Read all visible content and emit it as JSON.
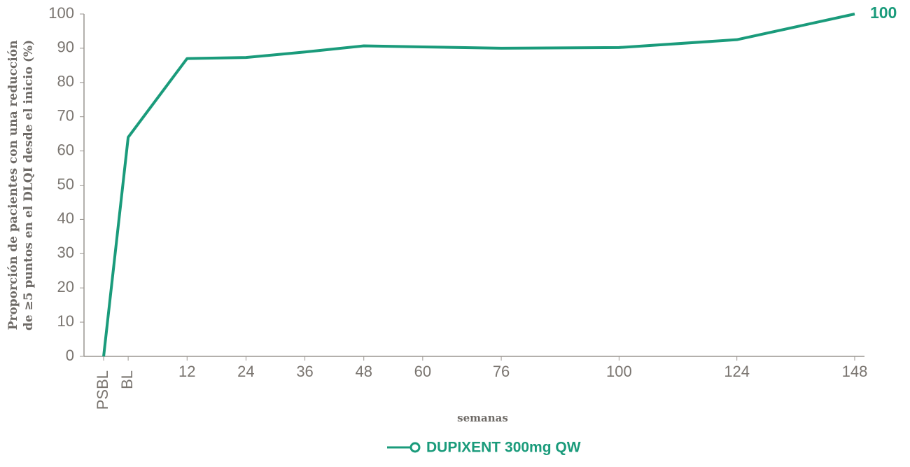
{
  "chart_data": {
    "type": "line",
    "y_label_lines": [
      "Proporción de pacientes con una reducción",
      "de ≥5 puntos en el DLQI desde el inicio (%)"
    ],
    "x_label": "semanas",
    "x": [
      -5,
      0,
      12,
      24,
      36,
      48,
      60,
      76,
      100,
      124,
      148
    ],
    "series": [
      {
        "name": "DUPIXENT 300mg QW",
        "color": "#1a9b7b",
        "values": [
          0,
          64,
          87,
          87.3,
          88.9,
          90.7,
          90.4,
          90,
          90.2,
          92.5,
          100
        ]
      }
    ],
    "xlim": [
      -9,
      150
    ],
    "xticks": [
      {
        "value": -5,
        "label": "PSBL"
      },
      {
        "value": 0,
        "label": "BL"
      },
      12,
      24,
      36,
      48,
      60,
      76,
      100,
      124,
      148
    ],
    "ylim": [
      0,
      100
    ],
    "yticks": [
      0,
      10,
      20,
      30,
      40,
      50,
      60,
      70,
      80,
      90,
      100
    ],
    "annotations": [
      {
        "text": "100",
        "x": 148,
        "y": 100
      }
    ]
  }
}
